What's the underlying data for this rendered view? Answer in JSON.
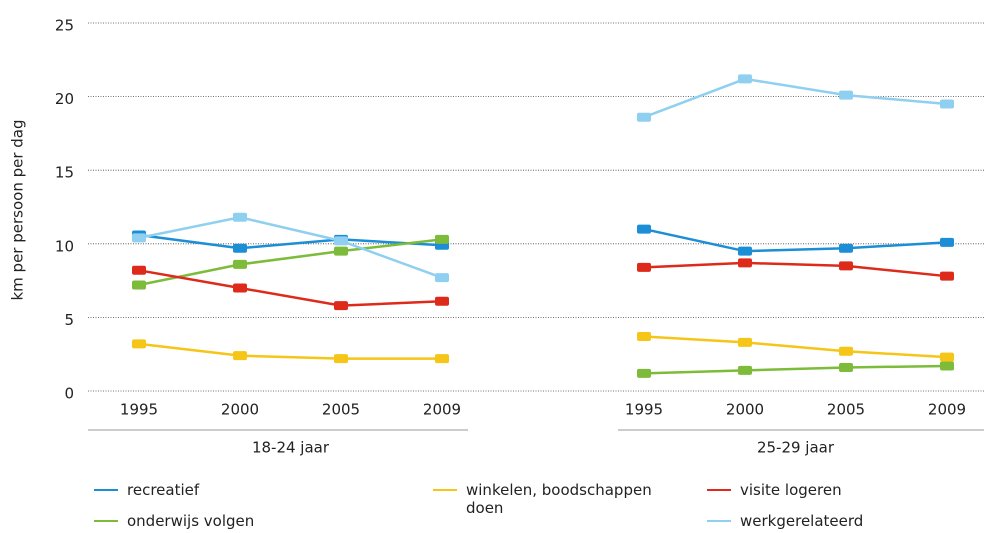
{
  "chart_data": {
    "type": "line",
    "y_label": "km per persoon per dag",
    "categories": [
      "1995",
      "2000",
      "2005",
      "2009",
      null,
      "1995",
      "2000",
      "2005",
      "2009"
    ],
    "groups": [
      "18-24 jaar",
      "25-29 jaar"
    ],
    "ylim": [
      0,
      25
    ],
    "yticks": [
      0,
      5,
      10,
      15,
      20,
      25
    ],
    "grid": true,
    "series": [
      {
        "name": "recreatief",
        "color": "#1b8ed6",
        "values": [
          10.6,
          9.7,
          10.3,
          9.9,
          null,
          11.0,
          9.5,
          9.7,
          10.1
        ]
      },
      {
        "name": "onderwijs volgen",
        "color": "#7dbb3a",
        "values": [
          7.2,
          8.6,
          9.5,
          10.3,
          null,
          1.2,
          1.4,
          1.6,
          1.7
        ]
      },
      {
        "name": "winkelen, boodschappen doen",
        "color": "#f5c518",
        "values": [
          3.2,
          2.4,
          2.2,
          2.2,
          null,
          3.7,
          3.3,
          2.7,
          2.3
        ]
      },
      {
        "name": "visite logeren",
        "color": "#dd2a1b",
        "values": [
          8.2,
          7.0,
          5.8,
          6.1,
          null,
          8.4,
          8.7,
          8.5,
          7.8
        ]
      },
      {
        "name": "werkgerelateerd",
        "color": "#8fd0f0",
        "values": [
          10.4,
          11.8,
          10.2,
          7.7,
          null,
          18.6,
          21.2,
          20.1,
          19.5
        ]
      }
    ]
  }
}
